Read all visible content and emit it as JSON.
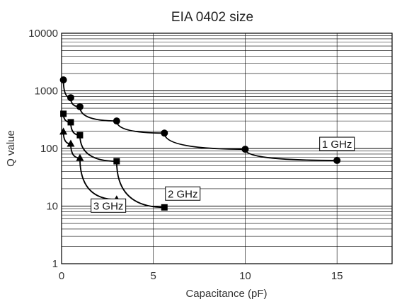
{
  "chart_data": {
    "type": "line",
    "title": "EIA 0402 size",
    "xlabel": "Capacitance (pF)",
    "ylabel": "Q value",
    "xlim": [
      0,
      18
    ],
    "ylim": [
      1,
      10000
    ],
    "yscale": "log",
    "grid": true,
    "x_ticks": [
      0,
      5,
      10,
      15
    ],
    "x_tick_labels": [
      "0",
      "5",
      "10",
      "15"
    ],
    "y_ticks": [
      1,
      10,
      100,
      1000,
      10000
    ],
    "y_tick_labels": [
      "1",
      "10",
      "100",
      "1000",
      "10000"
    ],
    "series": [
      {
        "name": "1 GHz",
        "marker": "circle",
        "x": [
          0.1,
          0.5,
          1.0,
          3.0,
          5.6,
          10.0,
          15.0
        ],
        "y": [
          1550,
          760,
          530,
          300,
          185,
          97,
          62
        ]
      },
      {
        "name": "2 GHz",
        "marker": "square",
        "x": [
          0.1,
          0.5,
          1.0,
          3.0,
          5.6
        ],
        "y": [
          400,
          285,
          170,
          60,
          9.5
        ]
      },
      {
        "name": "3 GHz",
        "marker": "triangle",
        "x": [
          0.1,
          0.5,
          1.0,
          3.0
        ],
        "y": [
          195,
          120,
          68,
          13
        ]
      }
    ]
  }
}
